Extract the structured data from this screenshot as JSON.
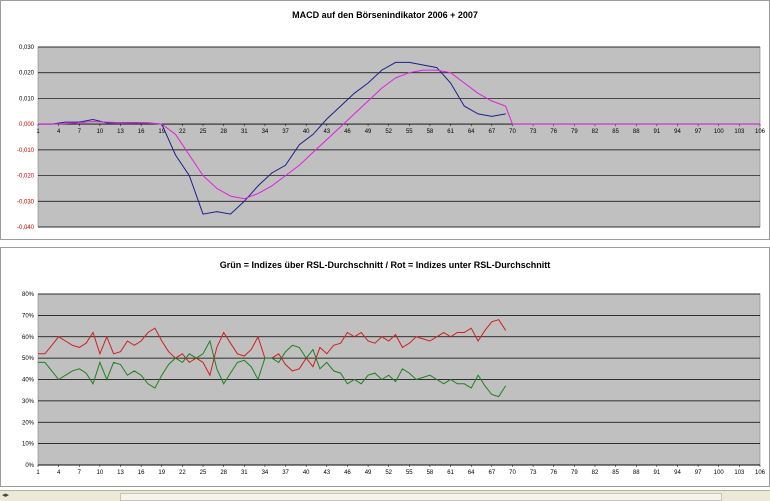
{
  "chart_data": [
    {
      "type": "line",
      "title": "MACD auf den Börsenindikator 2006 + 2007",
      "xlabel": "",
      "ylabel": "",
      "ylim": [
        -0.04,
        0.03
      ],
      "grid": true,
      "y_ticks": [
        "0,030",
        "0,020",
        "0,010",
        "0,000",
        "-0,010",
        "-0,020",
        "-0,030",
        "-0,040"
      ],
      "x_ticks": [
        "1",
        "4",
        "7",
        "10",
        "13",
        "16",
        "19",
        "22",
        "25",
        "28",
        "31",
        "34",
        "37",
        "40",
        "43",
        "46",
        "49",
        "52",
        "55",
        "58",
        "61",
        "64",
        "67",
        "70",
        "73",
        "76",
        "79",
        "82",
        "85",
        "88",
        "91",
        "94",
        "97",
        "100",
        "103",
        "106"
      ],
      "x": [
        1,
        3,
        5,
        7,
        9,
        11,
        13,
        15,
        17,
        19,
        21,
        23,
        25,
        27,
        29,
        31,
        33,
        35,
        37,
        39,
        41,
        43,
        45,
        47,
        49,
        51,
        53,
        55,
        57,
        59,
        61,
        63,
        65,
        67,
        69
      ],
      "series": [
        {
          "color": "#1f1f8a",
          "values": [
            0.0,
            0.0,
            0.0008,
            0.0008,
            0.0018,
            0.0005,
            0.0006,
            0.0006,
            0.0005,
            0.0,
            -0.012,
            -0.02,
            -0.035,
            -0.034,
            -0.035,
            -0.03,
            -0.024,
            -0.019,
            -0.016,
            -0.008,
            -0.004,
            0.002,
            0.007,
            0.012,
            0.016,
            0.021,
            0.024,
            0.024,
            0.023,
            0.022,
            0.016,
            0.007,
            0.004,
            0.003,
            0.004
          ]
        },
        {
          "color": "#e020e0",
          "values": [
            0.0,
            0.0,
            0.0002,
            0.0006,
            0.001,
            0.0008,
            0.0006,
            0.0005,
            0.0004,
            0.0,
            -0.004,
            -0.012,
            -0.02,
            -0.025,
            -0.028,
            -0.029,
            -0.027,
            -0.024,
            -0.02,
            -0.016,
            -0.011,
            -0.006,
            -0.001,
            0.004,
            0.009,
            0.014,
            0.018,
            0.02,
            0.021,
            0.021,
            0.02,
            0.016,
            0.012,
            0.009,
            0.007
          ]
        }
      ],
      "tail_zero_series": {
        "color": "#e020e0",
        "x": [
          70,
          106
        ],
        "values": [
          0.0,
          0.0
        ]
      }
    },
    {
      "type": "line",
      "title": "Grün = Indizes über RSL-Durchschnitt / Rot = Indizes unter RSL-Durchschnitt",
      "xlabel": "",
      "ylabel": "",
      "ylim": [
        0,
        80
      ],
      "grid": true,
      "y_ticks": [
        "80%",
        "70%",
        "60%",
        "50%",
        "40%",
        "30%",
        "20%",
        "10%",
        "0%"
      ],
      "x_ticks": [
        "1",
        "4",
        "7",
        "10",
        "13",
        "16",
        "19",
        "22",
        "25",
        "28",
        "31",
        "34",
        "37",
        "40",
        "43",
        "46",
        "49",
        "52",
        "55",
        "58",
        "61",
        "64",
        "67",
        "70",
        "73",
        "76",
        "79",
        "82",
        "85",
        "88",
        "91",
        "94",
        "97",
        "100",
        "103",
        "106"
      ],
      "x": [
        1,
        2,
        3,
        4,
        5,
        6,
        7,
        8,
        9,
        10,
        11,
        12,
        13,
        14,
        15,
        16,
        17,
        18,
        19,
        20,
        21,
        22,
        23,
        24,
        25,
        26,
        27,
        28,
        29,
        30,
        31,
        32,
        33,
        34,
        35,
        36,
        37,
        38,
        39,
        40,
        41,
        42,
        43,
        44,
        45,
        46,
        47,
        48,
        49,
        50,
        51,
        52,
        53,
        54,
        55,
        56,
        57,
        58,
        59,
        60,
        61,
        62,
        63,
        64,
        65,
        66,
        67,
        68,
        69
      ],
      "series": [
        {
          "color": "#d02020",
          "values": [
            52,
            52,
            56,
            60,
            58,
            56,
            55,
            57,
            62,
            52,
            60,
            52,
            53,
            58,
            56,
            58,
            62,
            64,
            58,
            53,
            50,
            52,
            48,
            50,
            48,
            42,
            55,
            62,
            57,
            52,
            51,
            54,
            60,
            50,
            50,
            52,
            47,
            44,
            45,
            50,
            46,
            55,
            52,
            56,
            57,
            62,
            60,
            62,
            58,
            57,
            60,
            58,
            61,
            55,
            57,
            60,
            59,
            58,
            60,
            62,
            60,
            62,
            62,
            64,
            58,
            63,
            67,
            68,
            63
          ]
        },
        {
          "color": "#208020",
          "values": [
            48,
            48,
            44,
            40,
            42,
            44,
            45,
            43,
            38,
            48,
            40,
            48,
            47,
            42,
            44,
            42,
            38,
            36,
            42,
            47,
            50,
            48,
            52,
            50,
            52,
            58,
            45,
            38,
            43,
            48,
            49,
            46,
            40,
            50,
            50,
            48,
            53,
            56,
            55,
            50,
            54,
            45,
            48,
            44,
            43,
            38,
            40,
            38,
            42,
            43,
            40,
            42,
            39,
            45,
            43,
            40,
            41,
            42,
            40,
            38,
            40,
            38,
            38,
            36,
            42,
            37,
            33,
            32,
            37
          ]
        }
      ]
    }
  ]
}
